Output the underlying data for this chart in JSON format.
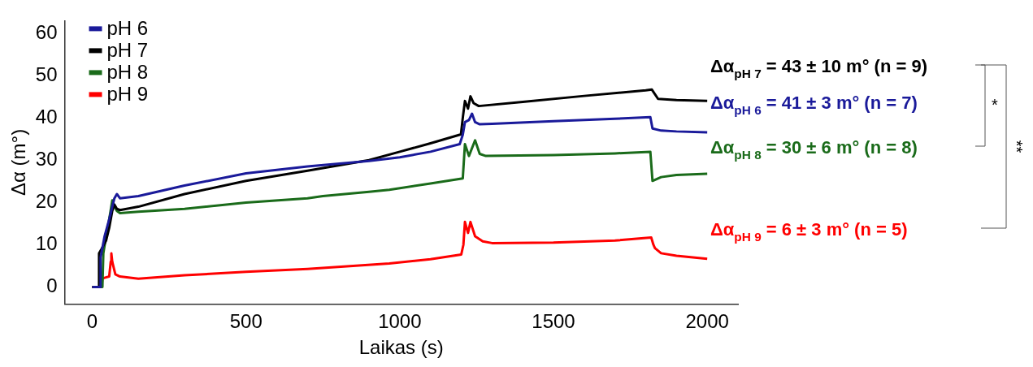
{
  "chart_data": {
    "type": "line",
    "xlabel": "Laikas (s)",
    "ylabel": "Δα (m°)",
    "xlim": [
      -90,
      2100
    ],
    "xticks": [
      0,
      500,
      1000,
      1500,
      2000
    ],
    "ylim": [
      -4,
      63
    ],
    "yticks": [
      0,
      10,
      20,
      30,
      40,
      50,
      60
    ],
    "grid": false,
    "legend": "top left",
    "marker": "none",
    "line_style": "solid",
    "series": [
      {
        "name": "pH 6",
        "color": "#1a1a9a",
        "x": [
          0,
          25,
          27,
          40,
          55,
          65,
          72,
          80,
          90,
          150,
          300,
          500,
          700,
          900,
          1000,
          1100,
          1195,
          1205,
          1212,
          1225,
          1235,
          1245,
          1260,
          1300,
          1500,
          1700,
          1815,
          1822,
          1850,
          1900,
          2000
        ],
        "values": [
          0,
          0,
          7,
          12,
          16,
          19,
          21,
          22,
          21,
          21.5,
          24,
          26.9,
          28.5,
          29.8,
          30.7,
          32,
          33.8,
          36,
          39,
          39.5,
          41,
          39,
          38.5,
          38.6,
          39.2,
          39.8,
          40.2,
          37.5,
          37,
          36.8,
          36.6
        ]
      },
      {
        "name": "pH 7",
        "color": "#000000",
        "x": [
          0,
          20,
          22,
          30,
          45,
          55,
          65,
          72,
          80,
          90,
          150,
          300,
          500,
          700,
          900,
          1000,
          1100,
          1199,
          1205,
          1212,
          1222,
          1230,
          1240,
          1257,
          1400,
          1600,
          1800,
          1820,
          1840,
          1900,
          2000
        ],
        "values": [
          0,
          0,
          8,
          9,
          11,
          14,
          18,
          19.5,
          18.5,
          18.2,
          19,
          22,
          25.1,
          27.5,
          30,
          32,
          34,
          36.1,
          40,
          44,
          42.2,
          45.1,
          43.5,
          42.8,
          43.8,
          45.2,
          46.5,
          46.7,
          44.5,
          44.2,
          44
        ]
      },
      {
        "name": "pH 8",
        "color": "#1a6b1a",
        "x": [
          0,
          33,
          36,
          45,
          55,
          65,
          72,
          80,
          90,
          150,
          300,
          500,
          700,
          750,
          900,
          966,
          1100,
          1205,
          1212,
          1225,
          1245,
          1260,
          1280,
          1500,
          1700,
          1815,
          1822,
          1850,
          1900,
          2000
        ],
        "values": [
          0,
          0,
          8,
          12,
          16,
          20.5,
          19,
          18,
          17.5,
          17.8,
          18.5,
          20,
          21,
          21.5,
          22.5,
          23,
          24.5,
          25.7,
          33.8,
          31,
          34.7,
          31.5,
          31,
          31.2,
          31.6,
          32,
          25.1,
          26,
          26.5,
          26.8
        ]
      },
      {
        "name": "pH 9",
        "color": "#ff0000",
        "x": [
          0,
          30,
          33,
          40,
          55,
          60,
          62,
          65,
          75,
          90,
          150,
          300,
          500,
          700,
          966,
          1100,
          1200,
          1207,
          1212,
          1222,
          1230,
          1245,
          1270,
          1300,
          1500,
          1700,
          1818,
          1825,
          1830,
          1850,
          1900,
          2000
        ],
        "values": [
          0,
          0,
          2,
          2.2,
          2.5,
          6,
          8,
          6,
          3,
          2.5,
          2,
          2.8,
          3.6,
          4.3,
          5.6,
          6.6,
          7.7,
          10,
          15.4,
          12.8,
          15.4,
          12,
          10.8,
          10.4,
          10.5,
          11,
          11.7,
          10,
          9.2,
          8,
          7.4,
          6.7
        ]
      }
    ],
    "annotations": [
      "Δα$_{pH 7}$ = 43 ± 10 m° (n = 9)",
      "Δα$_{pH 6}$ = 41 ± 3 m° (n = 7)",
      "Δα$_{pH 8}$ = 30 ± 6 m° (n = 8)",
      "Δα$_{pH 9}$ = 6 ± 3 m° (n = 5)",
      "*",
      "**"
    ]
  }
}
